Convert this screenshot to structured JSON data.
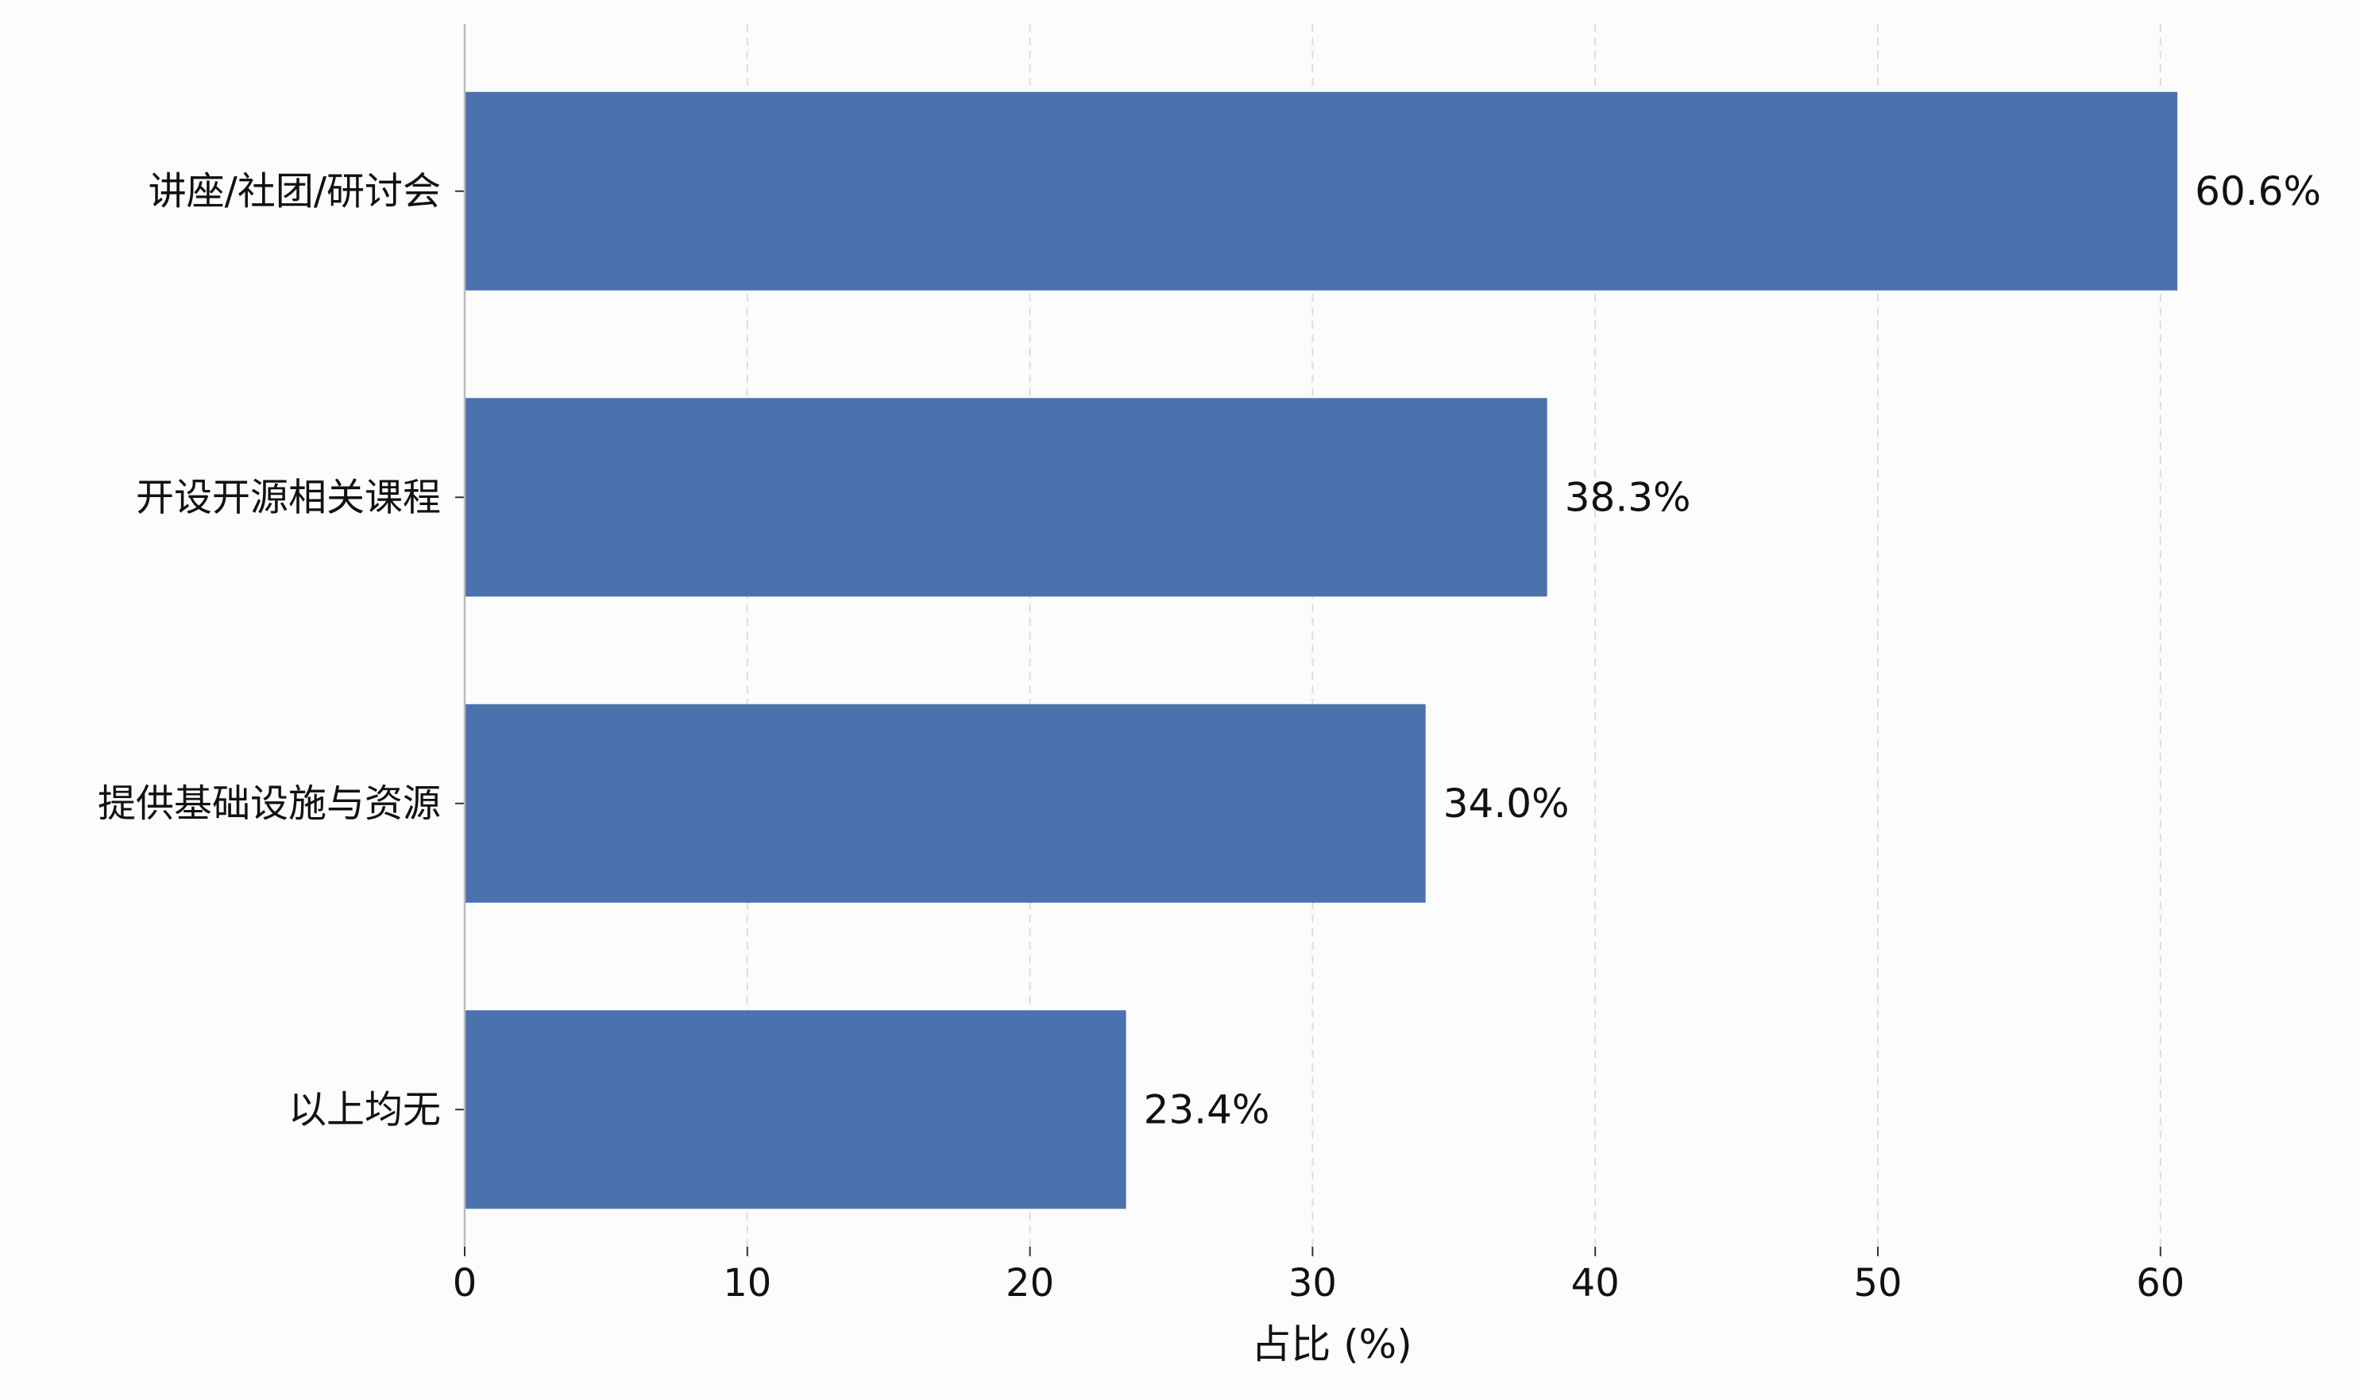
{
  "chart_data": {
    "type": "bar",
    "orientation": "horizontal",
    "categories": [
      "讲座/社团/研讨会",
      "开设开源相关课程",
      "提供基础设施与资源",
      "以上均无"
    ],
    "values": [
      60.6,
      38.3,
      34.0,
      23.4
    ],
    "value_labels": [
      "60.6%",
      "38.3%",
      "34.0%",
      "23.4%"
    ],
    "title": "",
    "xlabel": "占比 (%)",
    "ylabel": "",
    "xlim": [
      0,
      66
    ],
    "xticks": [
      0,
      10,
      20,
      30,
      40,
      50,
      60
    ],
    "xtick_labels": [
      "0",
      "10",
      "20",
      "30",
      "40",
      "50",
      "60"
    ],
    "grid": "x-dashed",
    "bar_color": "#4c72ae",
    "grid_color": "#dddddd",
    "axis_color": "#bbbbbb"
  }
}
